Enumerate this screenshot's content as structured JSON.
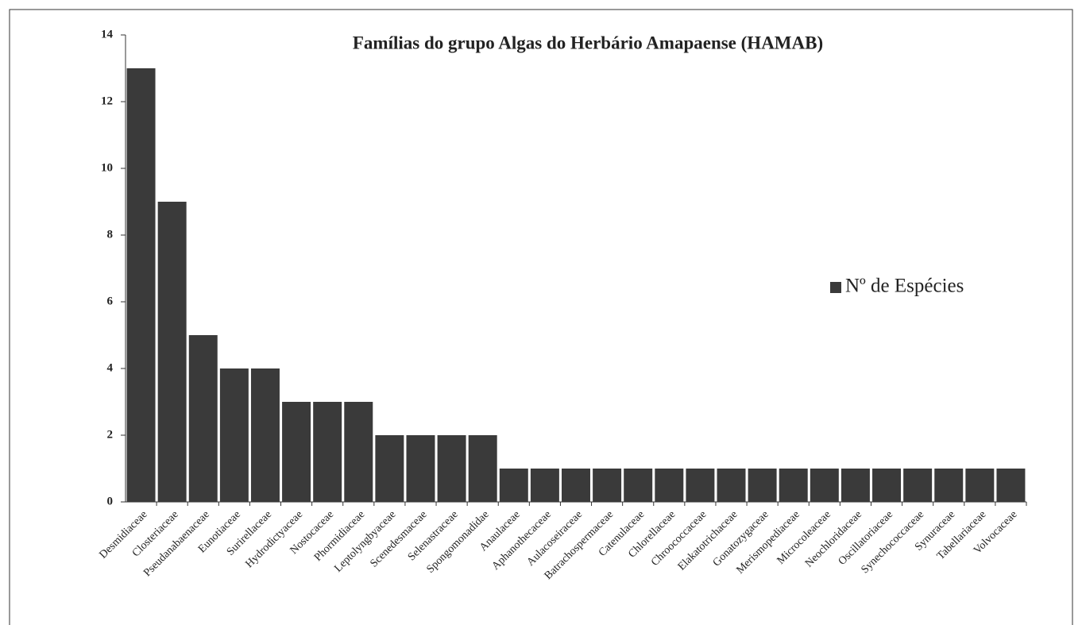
{
  "chart_data": {
    "type": "bar",
    "title": "Famílias do grupo Algas do Herbário Amapaense (HAMAB)",
    "categories": [
      "Desmidiaceae",
      "Closteriaceae",
      "Pseudanabaenaceae",
      "Eunotiaceae",
      "Surirellaceae",
      "Hydrodictyaceae",
      "Nostocaceae",
      "Phormidiaceae",
      "Leptolyngbyaceae",
      "Scenedesmaceae",
      "Selenastraceae",
      "Spongomonadidae",
      "Anaulaceae",
      "Aphanothecaceae",
      "Aulacoseiraceae",
      "Batrachospermaceae",
      "Catenulaceae",
      "Chlorellaceae",
      "Chroococcaceae",
      "Elakatotrichaceae",
      "Gonatozygaceae",
      "Merismopediaceae",
      "Microcoleaceae",
      "Neochloridaceae",
      "Oscillatoriaceae",
      "Synechococcaceae",
      "Synuraceae",
      "Tabellariaceae",
      "Volvocaceae"
    ],
    "series": [
      {
        "name": "Nº de Espécies",
        "color": "#3a3a3a",
        "values": [
          13,
          9,
          5,
          4,
          4,
          3,
          3,
          3,
          2,
          2,
          2,
          2,
          1,
          1,
          1,
          1,
          1,
          1,
          1,
          1,
          1,
          1,
          1,
          1,
          1,
          1,
          1,
          1,
          1
        ]
      }
    ],
    "ylim": [
      0,
      14
    ],
    "yticks": [
      0,
      2,
      4,
      6,
      8,
      10,
      12,
      14
    ],
    "grid": false,
    "legend": "right"
  }
}
